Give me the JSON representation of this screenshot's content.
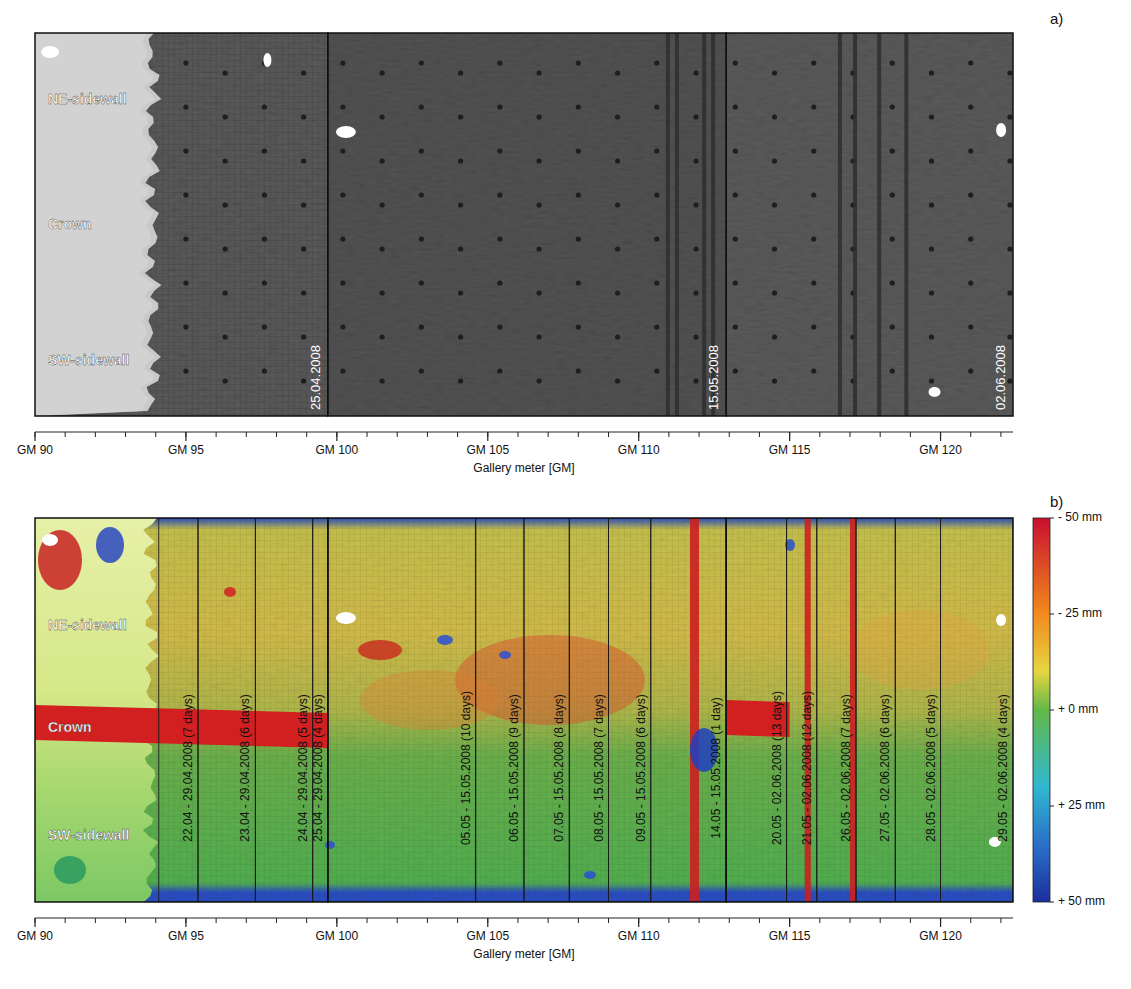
{
  "chart_data": [
    {
      "type": "image",
      "panel_label": "a)",
      "region_labels": [
        "NE-sidewall",
        "Crown",
        "SW-sidewall"
      ],
      "scans": [
        {
          "label": "25.04.2008",
          "start": 90,
          "end": 99.7
        },
        {
          "label": "15.05.2008",
          "start": 99.7,
          "end": 112.9
        },
        {
          "label": "02.06.2008",
          "start": 112.9,
          "end": 122.4
        }
      ],
      "xlabel": "Gallery meter [GM]",
      "xlim": [
        90,
        122.4
      ],
      "xticks": [
        {
          "value": 90,
          "label": "GM 90"
        },
        {
          "value": 95,
          "label": "GM 95"
        },
        {
          "value": 100,
          "label": "GM 100"
        },
        {
          "value": 105,
          "label": "GM 105"
        },
        {
          "value": 110,
          "label": "GM 110"
        },
        {
          "value": 115,
          "label": "GM 115"
        },
        {
          "value": 120,
          "label": "GM 120"
        }
      ],
      "minor_xticks": [
        90,
        91,
        92,
        93,
        94,
        95,
        96,
        97,
        98,
        99,
        100,
        101,
        102,
        103,
        104,
        105,
        106,
        107,
        108,
        109,
        110,
        111,
        112,
        113,
        114,
        115,
        116,
        117,
        118,
        119,
        120,
        121,
        122
      ]
    },
    {
      "type": "heatmap",
      "panel_label": "b)",
      "region_labels": [
        "NE-sidewall",
        "Crown",
        "SW-sidewall"
      ],
      "intervals": [
        {
          "label": "22.04 - 29.04.2008 (7 days)",
          "start": 94.1,
          "end": 95.4
        },
        {
          "label": "23.04 - 29.04.2008 (6 days)",
          "start": 95.4,
          "end": 97.3
        },
        {
          "label": "24.04 - 29.04.2008 (5 days)",
          "start": 97.3,
          "end": 99.2
        },
        {
          "label": "25.04 - 29.04.2008 (4 days)",
          "start": 99.2,
          "end": 99.7
        },
        {
          "label": "05.05 - 15.05.2008 (10 days)",
          "start": 99.7,
          "end": 104.6
        },
        {
          "label": "06.05 - 15.05.2008 (9 days)",
          "start": 104.6,
          "end": 106.2
        },
        {
          "label": "07.05 - 15.05.2008 (8 days)",
          "start": 106.2,
          "end": 107.7
        },
        {
          "label": "08.05 - 15.05.2008 (7 days)",
          "start": 107.7,
          "end": 109.0
        },
        {
          "label": "09.05 - 15.05.2008 (6 days)",
          "start": 109.0,
          "end": 110.4
        },
        {
          "label": "14.05 - 15.05.2008 (1 day)",
          "start": 110.4,
          "end": 112.9
        },
        {
          "label": "20.05 - 02.06.2008 (13 days)",
          "start": 112.9,
          "end": 114.9
        },
        {
          "label": "21.05 - 02.06.2008 (12 days)",
          "start": 114.9,
          "end": 115.9
        },
        {
          "label": "26.05 - 02.06.2008 (7 days)",
          "start": 115.9,
          "end": 117.2
        },
        {
          "label": "27.05 - 02.06.2008 (6 days)",
          "start": 117.2,
          "end": 118.5
        },
        {
          "label": "28.05 - 02.06.2008 (5 days)",
          "start": 118.5,
          "end": 120.0
        },
        {
          "label": "29.05 - 02.06.2008 (4 days)",
          "start": 120.0,
          "end": 122.4
        }
      ],
      "xlabel": "Gallery meter [GM]",
      "xlim": [
        90,
        122.4
      ],
      "xticks": [
        {
          "value": 90,
          "label": "GM 90"
        },
        {
          "value": 95,
          "label": "GM 95"
        },
        {
          "value": 100,
          "label": "GM 100"
        },
        {
          "value": 105,
          "label": "GM 105"
        },
        {
          "value": 110,
          "label": "GM 110"
        },
        {
          "value": 115,
          "label": "GM 115"
        },
        {
          "value": 120,
          "label": "GM 120"
        }
      ],
      "minor_xticks": [
        90,
        91,
        92,
        93,
        94,
        95,
        96,
        97,
        98,
        99,
        100,
        101,
        102,
        103,
        104,
        105,
        106,
        107,
        108,
        109,
        110,
        111,
        112,
        113,
        114,
        115,
        116,
        117,
        118,
        119,
        120,
        121,
        122
      ],
      "colorbar": {
        "range": [
          -50,
          50
        ],
        "ticks": [
          {
            "value": -50,
            "label": "- 50 mm"
          },
          {
            "value": -25,
            "label": "- 25 mm"
          },
          {
            "value": 0,
            "label": "+ 0 mm"
          },
          {
            "value": 25,
            "label": "+ 25 mm"
          },
          {
            "value": 50,
            "label": "+ 50 mm"
          }
        ]
      }
    }
  ]
}
